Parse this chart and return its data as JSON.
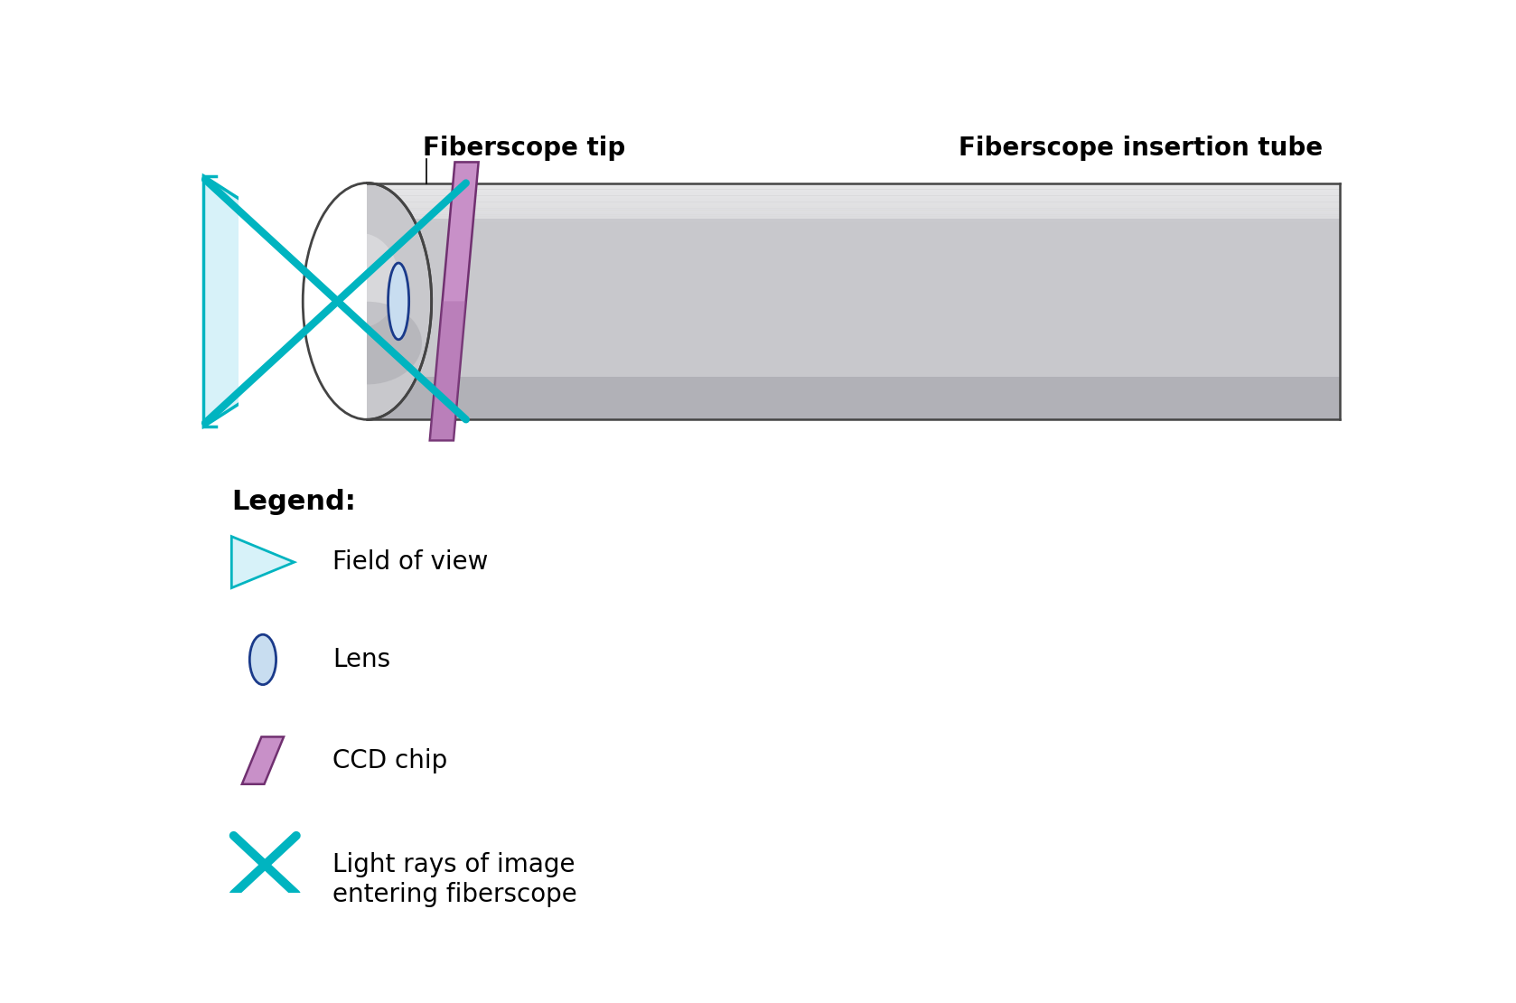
{
  "bg_color": "#ffffff",
  "tube_body_color": "#c8c8cc",
  "tube_top_color": "#dedee2",
  "tube_bottom_color": "#aaaab0",
  "tube_stroke": "#444444",
  "ccd_fill_top": "#c890c8",
  "ccd_fill_bot": "#a060a0",
  "ccd_stroke": "#703070",
  "lens_fill": "#c8ddf0",
  "lens_stroke": "#1a3a8a",
  "ray_color": "#00b4c0",
  "fov_fill": "#d0f0f8",
  "fov_stroke": "#00b4c0",
  "label_tip": "Fiberscope tip",
  "label_tube": "Fiberscope insertion tube",
  "legend_title": "Legend:",
  "legend_fov": "Field of view",
  "legend_lens": "Lens",
  "legend_ccd": "CCD chip",
  "legend_rays": "Light rays of image\nentering fiberscope",
  "label_fontsize": 20,
  "legend_title_fontsize": 22,
  "legend_item_fontsize": 20
}
